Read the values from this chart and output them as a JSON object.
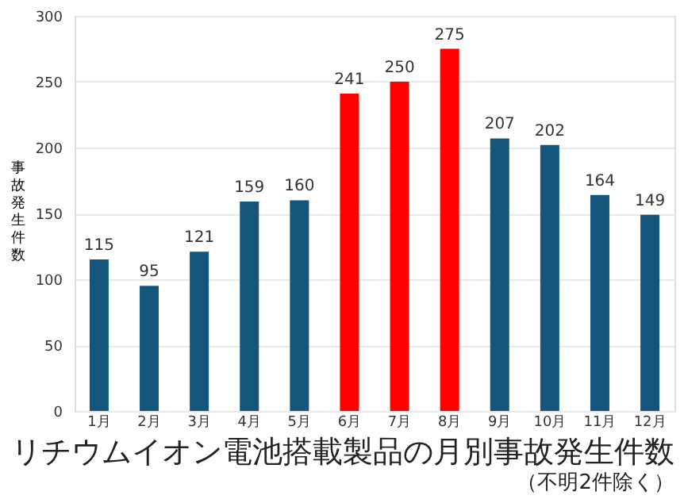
{
  "chart_data": {
    "type": "bar",
    "title": "リチウムイオン電池搭載製品の月別事故発生件数",
    "subtitle": "（不明2件除く）",
    "ylabel": "事故発生件数",
    "categories": [
      "1月",
      "2月",
      "3月",
      "4月",
      "5月",
      "6月",
      "7月",
      "8月",
      "9月",
      "10月",
      "11月",
      "12月"
    ],
    "values": [
      115,
      95,
      121,
      159,
      160,
      241,
      250,
      275,
      207,
      202,
      164,
      149
    ],
    "colors": [
      "#14557b",
      "#14557b",
      "#14557b",
      "#14557b",
      "#14557b",
      "#ff0000",
      "#ff0000",
      "#ff0000",
      "#14557b",
      "#14557b",
      "#14557b",
      "#14557b"
    ],
    "ylim": [
      0,
      300
    ],
    "yticks": [
      0,
      50,
      100,
      150,
      200,
      250,
      300
    ],
    "grid": "y",
    "data_labels": true
  }
}
